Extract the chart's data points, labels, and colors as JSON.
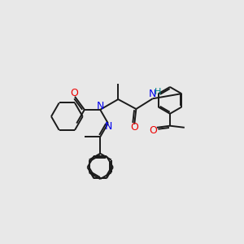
{
  "bg_color": "#e8e8e8",
  "bond_color": "#1a1a1a",
  "N_color": "#0000ee",
  "O_color": "#ee0000",
  "H_color": "#008888",
  "lw": 1.4,
  "xlim": [
    0.3,
    7.2
  ],
  "ylim": [
    1.2,
    8.2
  ],
  "figsize": [
    3.0,
    3.0
  ],
  "dpi": 100
}
